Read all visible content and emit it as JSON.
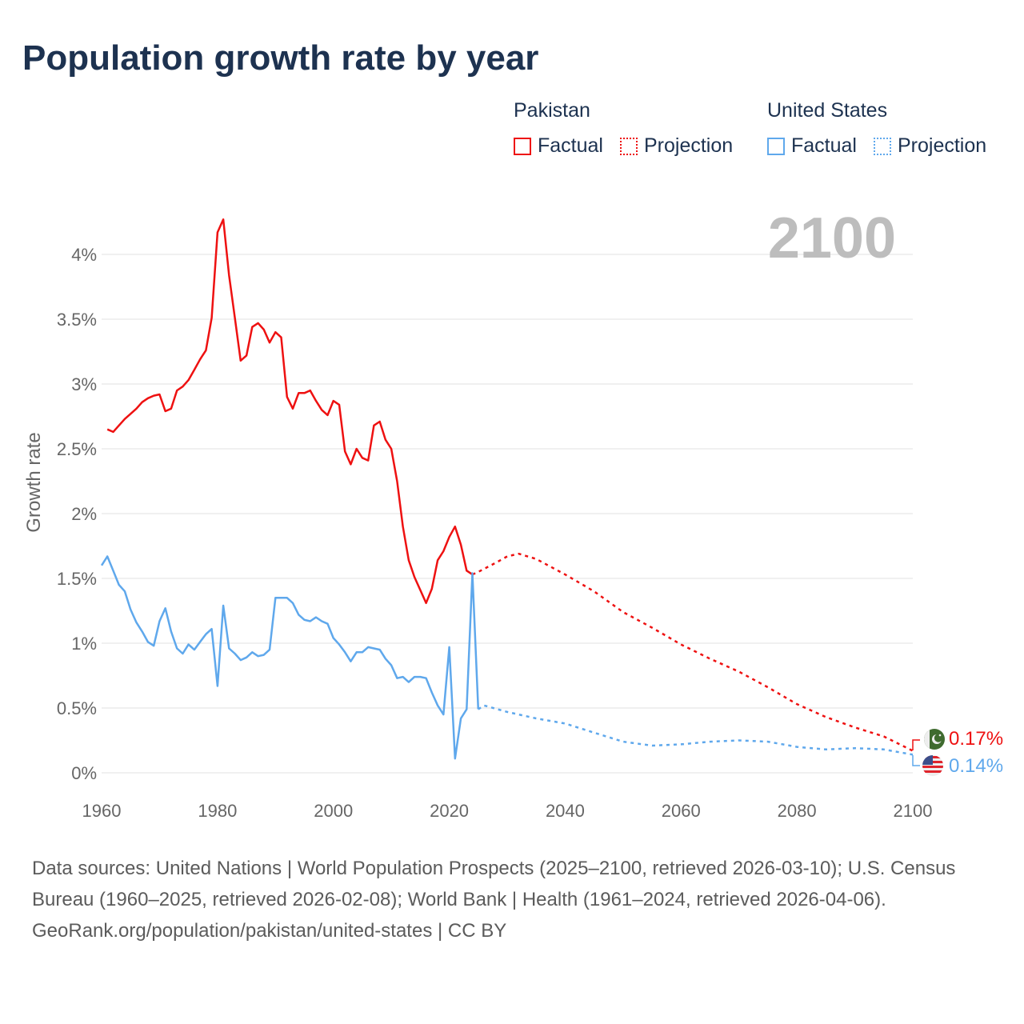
{
  "title": "Population growth rate by year",
  "legend": {
    "groups": [
      {
        "name": "Pakistan",
        "items": [
          "Factual",
          "Projection"
        ],
        "color": "#ee1111"
      },
      {
        "name": "United States",
        "items": [
          "Factual",
          "Projection"
        ],
        "color": "#5fa8ec"
      }
    ]
  },
  "year_display": "2100",
  "end_labels": {
    "pakistan": "0.17%",
    "united_states": "0.14%"
  },
  "footer": {
    "sources": "Data sources: United Nations | World Population Prospects (2025–2100, retrieved 2026-03-10); U.S. Census Bureau (1960–2025, retrieved 2026-02-08); World Bank | Health (1961–2024, retrieved 2026-04-06).",
    "credit": "GeoRank.org/population/pakistan/united-states | CC BY"
  },
  "chart_data": {
    "type": "line",
    "title": "Population growth rate by year",
    "xlabel": "",
    "ylabel": "Growth rate",
    "xlim": [
      1960,
      2100
    ],
    "ylim": [
      0,
      4.3
    ],
    "xticks": [
      1960,
      1980,
      2000,
      2020,
      2040,
      2060,
      2080,
      2100
    ],
    "yticks": [
      0,
      0.5,
      1,
      1.5,
      2,
      2.5,
      3,
      3.5,
      4
    ],
    "ytick_labels": [
      "0%",
      "0.5%",
      "1%",
      "1.5%",
      "2%",
      "2.5%",
      "3%",
      "3.5%",
      "4%"
    ],
    "grid": true,
    "legend_position": "top-right",
    "series": [
      {
        "name": "Pakistan Factual",
        "color": "#ee1111",
        "dashed": false,
        "start_year": 1961,
        "values": [
          2.65,
          2.63,
          2.68,
          2.73,
          2.77,
          2.81,
          2.86,
          2.89,
          2.91,
          2.92,
          2.79,
          2.81,
          2.95,
          2.98,
          3.03,
          3.11,
          3.19,
          3.26,
          3.51,
          4.17,
          4.27,
          3.84,
          3.51,
          3.18,
          3.22,
          3.44,
          3.47,
          3.42,
          3.32,
          3.4,
          3.36,
          2.9,
          2.81,
          2.93,
          2.93,
          2.95,
          2.87,
          2.8,
          2.76,
          2.87,
          2.84,
          2.48,
          2.38,
          2.5,
          2.43,
          2.41,
          2.68,
          2.71,
          2.57,
          2.5,
          2.25,
          1.9,
          1.64,
          1.51,
          1.41,
          1.31,
          1.42,
          1.64,
          1.71,
          1.82,
          1.9,
          1.76,
          1.56,
          1.53
        ]
      },
      {
        "name": "Pakistan Projection",
        "color": "#ee1111",
        "dashed": true,
        "x": [
          2024,
          2025,
          2028,
          2030,
          2032,
          2035,
          2040,
          2045,
          2050,
          2055,
          2060,
          2065,
          2070,
          2075,
          2080,
          2085,
          2090,
          2095,
          2100
        ],
        "values": [
          1.53,
          1.55,
          1.62,
          1.67,
          1.69,
          1.65,
          1.53,
          1.4,
          1.24,
          1.12,
          0.99,
          0.88,
          0.78,
          0.66,
          0.53,
          0.43,
          0.35,
          0.28,
          0.17
        ]
      },
      {
        "name": "United States Factual",
        "color": "#5fa8ec",
        "dashed": false,
        "start_year": 1960,
        "values": [
          1.6,
          1.67,
          1.56,
          1.45,
          1.4,
          1.26,
          1.16,
          1.09,
          1.01,
          0.98,
          1.17,
          1.27,
          1.09,
          0.96,
          0.92,
          0.99,
          0.95,
          1.01,
          1.07,
          1.11,
          0.67,
          1.29,
          0.96,
          0.92,
          0.87,
          0.89,
          0.93,
          0.9,
          0.91,
          0.95,
          1.35,
          1.35,
          1.35,
          1.31,
          1.22,
          1.18,
          1.17,
          1.2,
          1.17,
          1.15,
          1.04,
          0.99,
          0.93,
          0.86,
          0.93,
          0.93,
          0.97,
          0.96,
          0.95,
          0.88,
          0.83,
          0.73,
          0.74,
          0.7,
          0.74,
          0.74,
          0.73,
          0.62,
          0.52,
          0.45,
          0.97,
          0.11,
          0.42,
          0.49,
          1.54,
          0.49
        ]
      },
      {
        "name": "United States Projection",
        "color": "#5fa8ec",
        "dashed": true,
        "x": [
          2025,
          2026,
          2030,
          2035,
          2040,
          2045,
          2050,
          2055,
          2060,
          2065,
          2070,
          2075,
          2080,
          2085,
          2090,
          2095,
          2100
        ],
        "values": [
          0.49,
          0.52,
          0.47,
          0.42,
          0.38,
          0.31,
          0.24,
          0.21,
          0.22,
          0.24,
          0.25,
          0.24,
          0.2,
          0.18,
          0.19,
          0.18,
          0.14
        ]
      }
    ]
  }
}
